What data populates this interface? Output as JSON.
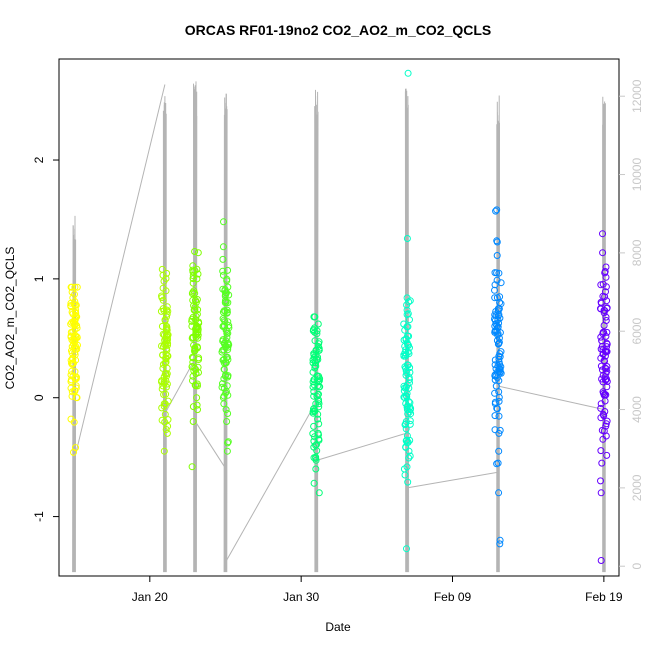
{
  "chart_data": {
    "type": "scatter",
    "title": "ORCAS RF01-19no2 CO2_AO2_m_CO2_QCLS",
    "xlabel": "Date",
    "ylabel": "CO2_AO2_m_CO2_QCLS",
    "x_ticks": [
      "Jan 20",
      "Jan 30",
      "Feb 09",
      "Feb 19"
    ],
    "y_ticks": [
      "-1",
      "0",
      "1",
      "2"
    ],
    "y2_ticks": [
      "0",
      "2000",
      "4000",
      "6000",
      "8000",
      "10000",
      "12000"
    ],
    "xlim": [
      "2016-01-14",
      "2016-02-20"
    ],
    "ylim": [
      -1.5,
      2.85
    ],
    "y2lim": [
      -250,
      12950
    ],
    "grid": false,
    "series": [
      {
        "flight_date": "2016-01-15",
        "color": "#ffff00",
        "stats": {
          "center": 0.45,
          "spread": 0.22,
          "min": -0.46,
          "max": 0.93
        },
        "values": [
          0.93,
          0.87,
          0.81,
          0.78,
          0.74,
          0.69,
          0.62,
          0.55,
          0.51,
          0.47,
          0.43,
          0.38,
          0.33,
          0.28,
          0.22,
          0.16,
          0.1,
          0.05,
          0.0,
          -0.18,
          -0.42,
          -0.46
        ],
        "altitude": {
          "min": -150,
          "max": 9000
        }
      },
      {
        "flight_date": "2016-01-21",
        "color": "#aaff00",
        "stats": {
          "center": 0.4,
          "spread": 0.3,
          "min": -0.45,
          "max": 1.08
        },
        "values": [
          1.08,
          1.03,
          0.98,
          0.9,
          0.82,
          0.75,
          0.68,
          0.6,
          0.52,
          0.44,
          0.36,
          0.28,
          0.2,
          0.12,
          0.03,
          -0.05,
          -0.14,
          -0.24,
          -0.3,
          -0.45
        ],
        "altitude": {
          "min": -150,
          "max": 12200
        }
      },
      {
        "flight_date": "2016-01-23",
        "color": "#7fff00",
        "stats": {
          "center": 0.55,
          "spread": 0.32,
          "min": -0.58,
          "max": 1.23
        },
        "values": [
          1.23,
          1.22,
          1.11,
          1.0,
          0.9,
          0.82,
          0.74,
          0.66,
          0.58,
          0.5,
          0.42,
          0.34,
          0.26,
          0.18,
          0.1,
          0.0,
          -0.1,
          -0.2,
          -0.58
        ],
        "altitude": {
          "min": -150,
          "max": 12400
        }
      },
      {
        "flight_date": "2016-01-25",
        "color": "#55ff22",
        "stats": {
          "center": 0.45,
          "spread": 0.33,
          "min": -0.45,
          "max": 1.48
        },
        "values": [
          1.48,
          1.27,
          1.03,
          0.9,
          0.8,
          0.72,
          0.64,
          0.56,
          0.48,
          0.4,
          0.32,
          0.24,
          0.16,
          0.08,
          0.0,
          -0.1,
          -0.2,
          -0.38,
          -0.45
        ],
        "altitude": {
          "min": -150,
          "max": 12100
        }
      },
      {
        "flight_date": "2016-01-31",
        "color": "#00ff77",
        "stats": {
          "center": 0.1,
          "spread": 0.32,
          "min": -0.8,
          "max": 0.68
        },
        "values": [
          0.68,
          0.62,
          0.55,
          0.48,
          0.4,
          0.32,
          0.25,
          0.18,
          0.1,
          0.03,
          -0.05,
          -0.13,
          -0.22,
          -0.3,
          -0.4,
          -0.5,
          -0.6,
          -0.72,
          -0.8
        ],
        "altitude": {
          "min": -150,
          "max": 12300
        }
      },
      {
        "flight_date": "2016-02-06",
        "color": "#00ffc8",
        "stats": {
          "center": 0.1,
          "spread": 0.35,
          "min": -1.27,
          "max": 2.73
        },
        "values": [
          2.73,
          1.34,
          0.84,
          0.78,
          0.7,
          0.62,
          0.52,
          0.44,
          0.35,
          0.26,
          0.17,
          0.08,
          0.0,
          -0.1,
          -0.2,
          -0.32,
          -0.45,
          -0.6,
          -0.65,
          -1.27
        ],
        "altitude": {
          "min": -150,
          "max": 12200
        }
      },
      {
        "flight_date": "2016-02-12",
        "color": "#0088ff",
        "stats": {
          "center": 0.4,
          "spread": 0.35,
          "min": -1.23,
          "max": 1.58
        },
        "values": [
          1.58,
          1.57,
          1.32,
          1.31,
          1.05,
          0.95,
          0.85,
          0.75,
          0.65,
          0.55,
          0.45,
          0.35,
          0.25,
          0.15,
          0.05,
          -0.05,
          -0.15,
          -0.3,
          -0.45,
          -0.55,
          -0.8,
          -1.2,
          -1.23
        ],
        "altitude": {
          "min": -150,
          "max": 12100
        }
      },
      {
        "flight_date": "2016-02-19",
        "color": "#6600ff",
        "stats": {
          "center": 0.4,
          "spread": 0.35,
          "min": -1.37,
          "max": 1.38
        },
        "values": [
          1.38,
          1.22,
          1.1,
          1.05,
          0.95,
          0.85,
          0.75,
          0.65,
          0.55,
          0.45,
          0.35,
          0.25,
          0.15,
          0.05,
          -0.05,
          -0.15,
          -0.28,
          -0.35,
          -0.55,
          -0.7,
          -0.8,
          -1.37
        ],
        "altitude": {
          "min": -150,
          "max": 12000
        }
      }
    ],
    "altitude_connectors": [
      {
        "from": "2016-01-15",
        "from_alt": 2700,
        "to": "2016-01-21",
        "to_alt": 12300
      },
      {
        "from": "2016-01-21",
        "from_alt": 3900,
        "to": "2016-01-23",
        "to_alt": 5300
      },
      {
        "from": "2016-01-23",
        "from_alt": 3700,
        "to": "2016-01-25",
        "to_alt": 2500
      },
      {
        "from": "2016-01-25",
        "from_alt": 100,
        "to": "2016-01-31",
        "to_alt": 4200
      },
      {
        "from": "2016-01-31",
        "from_alt": 2700,
        "to": "2016-02-06",
        "to_alt": 3400
      },
      {
        "from": "2016-02-06",
        "from_alt": 2000,
        "to": "2016-02-12",
        "to_alt": 2400
      },
      {
        "from": "2016-02-12",
        "from_alt": 4600,
        "to": "2016-02-19",
        "to_alt": 4000
      }
    ]
  }
}
